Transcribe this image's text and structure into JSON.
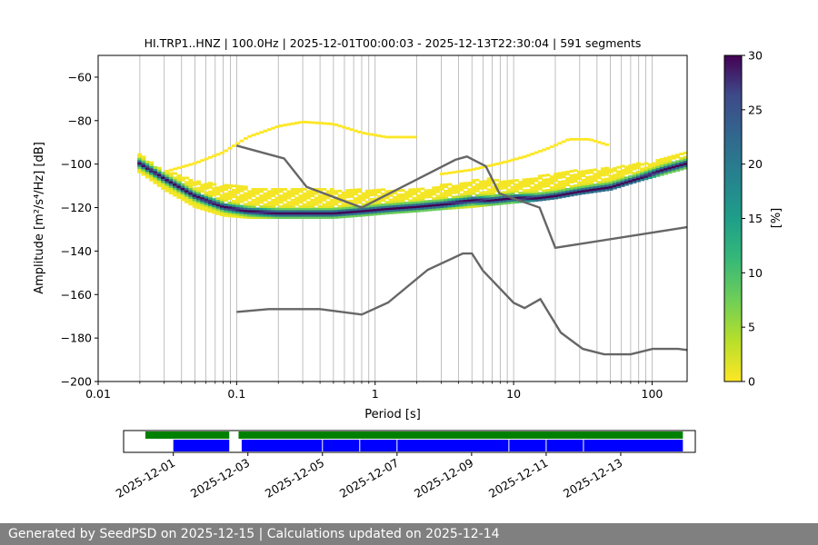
{
  "chart_data": [
    {
      "type": "heatmap",
      "title": "HI.TRP1..HNZ | 100.0Hz | 2025-12-01T00:00:03 - 2025-12-13T22:30:04 | 591 segments",
      "xlabel": "Period [s]",
      "ylabel": "Amplitude [m²/s⁴/Hz] [dB]",
      "x_scale": "log",
      "xlim": [
        0.01,
        179
      ],
      "ylim": [
        -200,
        -50
      ],
      "x_ticks": [
        0.01,
        0.1,
        1,
        10,
        100
      ],
      "x_tick_labels": [
        "0.01",
        "0.1",
        "1",
        "10",
        "100"
      ],
      "y_ticks": [
        -200,
        -180,
        -160,
        -140,
        -120,
        -100,
        -80,
        -60
      ],
      "y_tick_labels": [
        "−200",
        "−180",
        "−160",
        "−140",
        "−120",
        "−100",
        "−80",
        "−60"
      ],
      "grid": "vertical-log",
      "colorbar": {
        "label": "[%]",
        "range": [
          0,
          30
        ],
        "ticks": [
          0,
          5,
          10,
          15,
          20,
          25,
          30
        ],
        "colormap": "viridis-reversed"
      },
      "mode_curve": {
        "x": [
          0.02,
          0.03,
          0.05,
          0.08,
          0.12,
          0.2,
          0.3,
          0.5,
          0.8,
          1.2,
          2,
          3,
          5,
          7,
          10,
          15,
          20,
          30,
          50,
          80,
          120,
          179
        ],
        "y": [
          -100,
          -107,
          -115,
          -120,
          -122,
          -123,
          -123,
          -123,
          -122,
          -121,
          -120,
          -119,
          -117,
          -117,
          -116,
          -116,
          -115,
          -113,
          -111,
          -107,
          -103,
          -100
        ]
      },
      "density_spread": {
        "x": [
          0.02,
          0.03,
          0.05,
          0.08,
          0.12,
          0.2,
          0.3,
          0.5,
          0.8,
          1.2,
          2,
          3,
          5,
          7,
          10,
          15,
          20,
          30,
          50,
          80,
          120,
          179
        ],
        "lower": [
          -104,
          -112,
          -120,
          -124,
          -125,
          -125,
          -125,
          -125,
          -124,
          -123,
          -122,
          -121,
          -120,
          -119,
          -118,
          -117,
          -116,
          -114,
          -112,
          -108,
          -105,
          -102
        ],
        "upper": [
          -96,
          -103,
          -108,
          -110,
          -111,
          -112,
          -112,
          -112,
          -112,
          -112,
          -112,
          -110,
          -108,
          -107,
          -108,
          -106,
          -104,
          -103,
          -102,
          -100,
          -98,
          -95
        ]
      },
      "sparse_upper_arcs": [
        {
          "x": [
            0.03,
            0.05,
            0.08,
            0.12,
            0.2,
            0.3,
            0.5,
            0.8,
            1.2,
            2
          ],
          "y": [
            -104,
            -100,
            -95,
            -88,
            -83,
            -81,
            -82,
            -86,
            -88,
            -88
          ]
        },
        {
          "x": [
            3,
            5,
            8,
            12,
            18,
            25,
            35,
            50
          ],
          "y": [
            -105,
            -103,
            -100,
            -97,
            -93,
            -89,
            -89,
            -92
          ]
        }
      ],
      "nhnm": {
        "x": [
          0.1,
          0.22,
          0.32,
          0.8,
          3.8,
          4.6,
          6.3,
          7.9,
          15.4,
          20,
          179
        ],
        "y": [
          -91.5,
          -97.4,
          -110.5,
          -120,
          -98,
          -96.5,
          -101,
          -113.5,
          -120,
          -138.5,
          -129
        ]
      },
      "nlnm": {
        "x": [
          0.1,
          0.17,
          0.4,
          0.8,
          1.24,
          2.4,
          4.3,
          5,
          6,
          10,
          12,
          15.6,
          21.9,
          31.6,
          45,
          70,
          101,
          154,
          179
        ],
        "y": [
          -168,
          -166.7,
          -166.7,
          -169.2,
          -163.7,
          -148.6,
          -141.1,
          -141.1,
          -149,
          -163.8,
          -166.2,
          -162.1,
          -177.5,
          -185,
          -187.5,
          -187.5,
          -185,
          -185,
          -185.5
        ]
      }
    },
    {
      "type": "timeline",
      "x_tick_labels": [
        "2025-12-01",
        "2025-12-03",
        "2025-12-05",
        "2025-12-07",
        "2025-12-09",
        "2025-12-11",
        "2025-12-13"
      ],
      "x_tick_values": [
        "2025-12-01",
        "2025-12-03",
        "2025-12-05",
        "2025-12-07",
        "2025-12-09",
        "2025-12-11",
        "2025-12-13"
      ],
      "xlim": [
        "2025-11-29T16:00",
        "2025-12-15T00:00"
      ],
      "data_available": [
        {
          "start": "2025-11-30T06:00",
          "end": "2025-12-02T12:00"
        },
        {
          "start": "2025-12-02T18:00",
          "end": "2025-12-14T16:00"
        }
      ],
      "psd_segments": [
        {
          "start": "2025-12-01T00:00",
          "end": "2025-12-02T12:00"
        },
        {
          "start": "2025-12-02T20:00",
          "end": "2025-12-14T16:00"
        }
      ],
      "segment_dividers": [
        "2025-12-05T00:00",
        "2025-12-06T00:00",
        "2025-12-07T00:00",
        "2025-12-10T00:00",
        "2025-12-11T00:00",
        "2025-12-12T00:00"
      ],
      "colors": {
        "data_available": "#008000",
        "psd_segments": "#0000ff"
      }
    }
  ],
  "lines_color": "#666666",
  "footer": {
    "text": "Generated by SeedPSD on 2025-12-15 | Calculations updated on 2025-12-14"
  }
}
